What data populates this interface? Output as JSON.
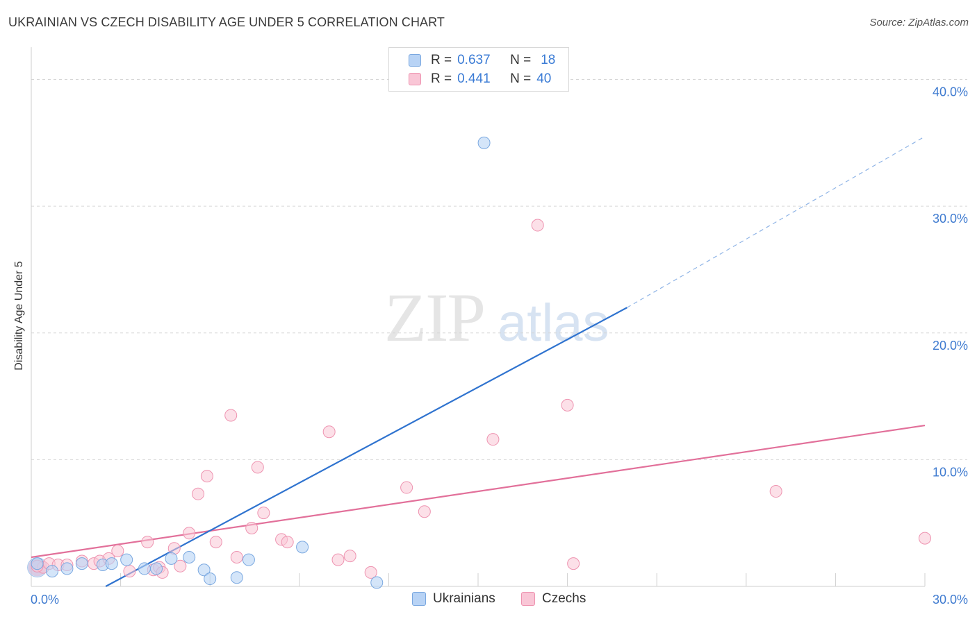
{
  "title": "UKRAINIAN VS CZECH DISABILITY AGE UNDER 5 CORRELATION CHART",
  "source": "Source: ZipAtlas.com",
  "watermark": {
    "zip": "ZIP",
    "atlas": "atlas"
  },
  "legend": {
    "ukrainians": {
      "r_label": "R =",
      "r_value": "0.637",
      "n_label": "N =",
      "n_value": "18"
    },
    "czechs": {
      "r_label": "R =",
      "r_value": "0.441",
      "n_label": "N =",
      "n_value": "40"
    }
  },
  "colors": {
    "ukrainians_fill": "#b8d3f5",
    "ukrainians_stroke": "#7aa8e0",
    "ukrainians_line": "#2f73cf",
    "czechs_fill": "#f9c6d6",
    "czechs_stroke": "#ee93b0",
    "czechs_line": "#e2709a",
    "accent_text": "#3a7bd5",
    "grid": "#d6d6d6"
  },
  "chart_data": {
    "type": "scatter",
    "title": "UKRAINIAN VS CZECH DISABILITY AGE UNDER 5 CORRELATION CHART",
    "xlabel": "",
    "ylabel": "Disability Age Under 5",
    "xlim": [
      0,
      30
    ],
    "ylim": [
      0,
      42
    ],
    "x_tick_labels": [
      "0.0%",
      "30.0%"
    ],
    "y_ticks": [
      10,
      20,
      30,
      40
    ],
    "y_tick_labels": [
      "10.0%",
      "20.0%",
      "30.0%",
      "40.0%"
    ],
    "grid": true,
    "legend_position": "bottom-center",
    "series": [
      {
        "name": "Ukrainians",
        "points": [
          [
            0.2,
            1.8
          ],
          [
            0.7,
            1.2
          ],
          [
            1.2,
            1.4
          ],
          [
            1.7,
            1.8
          ],
          [
            2.4,
            1.7
          ],
          [
            2.7,
            1.8
          ],
          [
            3.2,
            2.1
          ],
          [
            3.8,
            1.4
          ],
          [
            4.2,
            1.4
          ],
          [
            4.7,
            2.2
          ],
          [
            5.3,
            2.3
          ],
          [
            5.8,
            1.3
          ],
          [
            6.0,
            0.6
          ],
          [
            6.9,
            0.7
          ],
          [
            7.3,
            2.1
          ],
          [
            9.1,
            3.1
          ],
          [
            11.6,
            0.3
          ],
          [
            15.2,
            35.0
          ]
        ],
        "trend": {
          "x0": 2.5,
          "y0": 0.0,
          "x1": 20.0,
          "y1": 22.0,
          "dashed_to_x": 30.0,
          "dashed_to_y": 35.5
        }
      },
      {
        "name": "Czechs",
        "points": [
          [
            0.4,
            1.5
          ],
          [
            0.6,
            1.8
          ],
          [
            0.9,
            1.7
          ],
          [
            1.2,
            1.7
          ],
          [
            1.7,
            2.0
          ],
          [
            2.1,
            1.8
          ],
          [
            2.3,
            2.0
          ],
          [
            2.6,
            2.2
          ],
          [
            2.9,
            2.8
          ],
          [
            3.3,
            1.2
          ],
          [
            3.9,
            3.5
          ],
          [
            4.1,
            1.3
          ],
          [
            4.3,
            1.5
          ],
          [
            4.4,
            1.1
          ],
          [
            4.8,
            3.0
          ],
          [
            5.0,
            1.6
          ],
          [
            5.3,
            4.2
          ],
          [
            5.6,
            7.3
          ],
          [
            5.9,
            8.7
          ],
          [
            6.2,
            3.5
          ],
          [
            6.7,
            13.5
          ],
          [
            6.9,
            2.3
          ],
          [
            7.4,
            4.6
          ],
          [
            7.6,
            9.4
          ],
          [
            7.8,
            5.8
          ],
          [
            8.4,
            3.7
          ],
          [
            8.6,
            3.5
          ],
          [
            10.0,
            12.2
          ],
          [
            10.3,
            2.1
          ],
          [
            10.7,
            2.4
          ],
          [
            11.4,
            1.1
          ],
          [
            12.6,
            7.8
          ],
          [
            13.2,
            5.9
          ],
          [
            15.5,
            11.6
          ],
          [
            17.0,
            28.5
          ],
          [
            18.0,
            14.3
          ],
          [
            18.2,
            1.8
          ],
          [
            25.0,
            7.5
          ],
          [
            30.0,
            3.8
          ],
          [
            0.2,
            1.6
          ]
        ],
        "trend": {
          "x0": 0.0,
          "y0": 2.3,
          "x1": 30.0,
          "y1": 12.7
        }
      }
    ]
  },
  "bottom_legend": {
    "ukrainians": "Ukrainians",
    "czechs": "Czechs"
  }
}
